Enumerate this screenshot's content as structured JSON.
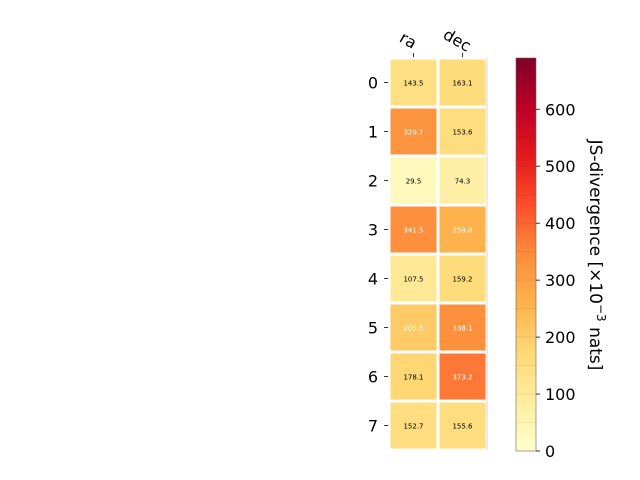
{
  "chart_data": {
    "type": "heatmap",
    "columns": [
      "ra",
      "dec"
    ],
    "rows": [
      "0",
      "1",
      "2",
      "3",
      "4",
      "5",
      "6",
      "7"
    ],
    "values": [
      [
        143.5,
        163.1
      ],
      [
        329.7,
        153.6
      ],
      [
        29.5,
        74.3
      ],
      [
        341.5,
        259.8
      ],
      [
        107.5,
        159.2
      ],
      [
        205.5,
        338.1
      ],
      [
        178.1,
        373.2
      ],
      [
        152.7,
        155.6
      ]
    ],
    "colorbar": {
      "label": "JS-divergence [×10",
      "label_exponent": "−3",
      "label_suffix": " nats]",
      "range": [
        0,
        690
      ],
      "ticks": [
        "0",
        "100",
        "200",
        "300",
        "400",
        "500",
        "600"
      ],
      "colormap": "YlOrRd"
    },
    "cell_value_labels": true,
    "grid": false
  }
}
